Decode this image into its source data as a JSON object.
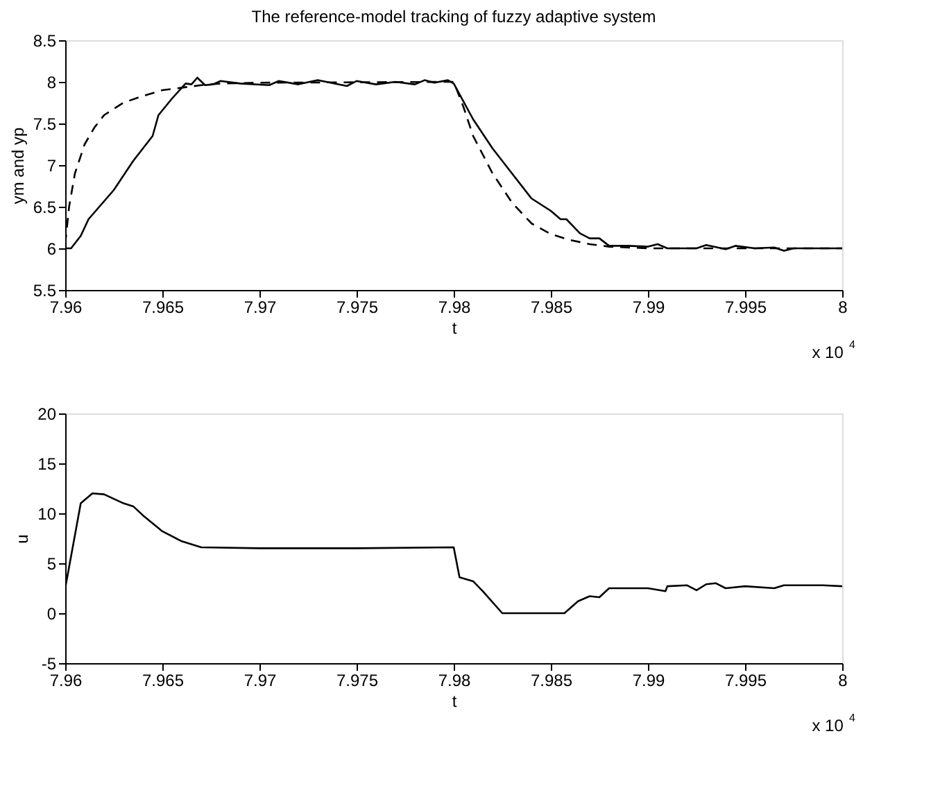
{
  "chart_data": [
    {
      "type": "line",
      "title": "The reference-model tracking of fuzzy adaptive system",
      "xlabel": "t",
      "ylabel": "ym and yp",
      "annotations": [
        "x 10$^{4}$"
      ],
      "xlim": [
        7.96,
        8
      ],
      "ylim": [
        5.5,
        8.5
      ],
      "xticks": [
        7.96,
        7.965,
        7.97,
        7.975,
        7.98,
        7.985,
        7.99,
        7.995,
        8
      ],
      "yticks": [
        5.5,
        6,
        6.5,
        7,
        7.5,
        8,
        8.5
      ],
      "grid": false,
      "series": [
        {
          "color": "#000000",
          "line_style": "solid",
          "x": [
            7.96,
            7.9603,
            7.9608,
            7.9612,
            7.9625,
            7.9635,
            7.9645,
            7.9648,
            7.9655,
            7.9662,
            7.9665,
            7.9668,
            7.9672,
            7.9676,
            7.968,
            7.969,
            7.9705,
            7.971,
            7.972,
            7.973,
            7.9745,
            7.975,
            7.976,
            7.977,
            7.978,
            7.9785,
            7.979,
            7.9797,
            7.98,
            7.981,
            7.982,
            7.983,
            7.984,
            7.985,
            7.9855,
            7.9858,
            7.9865,
            7.987,
            7.9875,
            7.988,
            7.989,
            7.99,
            7.9905,
            7.991,
            7.9925,
            7.993,
            7.994,
            7.9945,
            7.9955,
            7.9965,
            7.997,
            7.9975,
            7.9985,
            8
          ],
          "values": [
            6.0,
            6.0,
            6.15,
            6.35,
            6.7,
            7.05,
            7.35,
            7.6,
            7.8,
            7.98,
            7.97,
            8.05,
            7.96,
            7.97,
            8.01,
            7.98,
            7.96,
            8.01,
            7.97,
            8.02,
            7.95,
            8.01,
            7.97,
            8.0,
            7.97,
            8.02,
            7.99,
            8.02,
            7.98,
            7.55,
            7.2,
            6.9,
            6.6,
            6.45,
            6.35,
            6.35,
            6.18,
            6.12,
            6.12,
            6.03,
            6.03,
            6.02,
            6.05,
            6.0,
            6.0,
            6.04,
            5.99,
            6.03,
            6.0,
            6.01,
            5.97,
            6.0,
            6.0,
            6.0
          ]
        },
        {
          "color": "#000000",
          "line_style": "dashed",
          "x": [
            7.96,
            7.9602,
            7.9605,
            7.961,
            7.9615,
            7.962,
            7.963,
            7.964,
            7.965,
            7.966,
            7.967,
            7.968,
            7.97,
            7.98,
            7.9805,
            7.981,
            7.982,
            7.983,
            7.984,
            7.985,
            7.986,
            7.987,
            7.988,
            7.99,
            8
          ],
          "values": [
            6.05,
            6.5,
            6.9,
            7.25,
            7.45,
            7.6,
            7.75,
            7.83,
            7.9,
            7.93,
            7.96,
            7.98,
            7.99,
            8.0,
            7.7,
            7.35,
            6.9,
            6.55,
            6.3,
            6.17,
            6.1,
            6.05,
            6.02,
            6.0,
            6.0
          ]
        }
      ]
    },
    {
      "type": "line",
      "xlabel": "t",
      "ylabel": "u",
      "annotations": [
        "x 10$^{4}$"
      ],
      "xlim": [
        7.96,
        8
      ],
      "ylim": [
        -5,
        20
      ],
      "xticks": [
        7.96,
        7.965,
        7.97,
        7.975,
        7.98,
        7.985,
        7.99,
        7.995,
        8
      ],
      "yticks": [
        -5,
        0,
        5,
        10,
        15,
        20
      ],
      "grid": false,
      "series": [
        {
          "color": "#000000",
          "line_style": "solid",
          "x": [
            7.96,
            7.9608,
            7.9614,
            7.962,
            7.963,
            7.9635,
            7.964,
            7.965,
            7.966,
            7.967,
            7.97,
            7.975,
            7.98,
            7.9803,
            7.981,
            7.9815,
            7.9825,
            7.9857,
            7.9864,
            7.987,
            7.9875,
            7.988,
            7.99,
            7.9909,
            7.991,
            7.992,
            7.9925,
            7.993,
            7.9935,
            7.994,
            7.995,
            7.9965,
            7.997,
            7.999,
            8
          ],
          "values": [
            2.5,
            11,
            12,
            11.9,
            11,
            10.7,
            9.8,
            8.2,
            7.2,
            6.6,
            6.5,
            6.5,
            6.6,
            3.6,
            3.2,
            2.2,
            0,
            0,
            1.2,
            1.7,
            1.6,
            2.5,
            2.5,
            2.2,
            2.7,
            2.8,
            2.3,
            2.9,
            3.0,
            2.5,
            2.7,
            2.5,
            2.8,
            2.8,
            2.7
          ]
        }
      ]
    }
  ]
}
